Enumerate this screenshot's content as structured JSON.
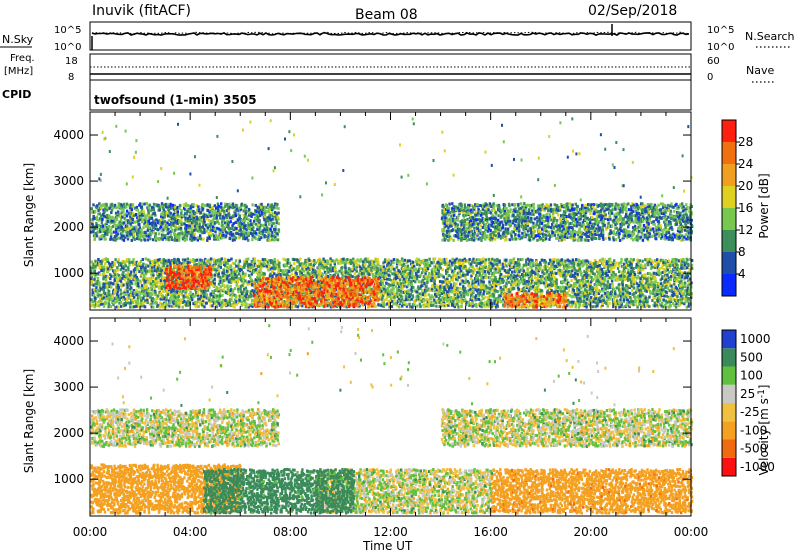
{
  "header": {
    "station": "Inuvik (fitACF)",
    "beam": "Beam 08",
    "date": "02/Sep/2018"
  },
  "noise_panel": {
    "left_label": "N.Sky",
    "left_ticks": [
      "10^5",
      "10^0"
    ],
    "right_ticks": [
      "10^5",
      "10^0"
    ],
    "right_label": "N.Search"
  },
  "freq_panel": {
    "left_label_1": "Freq.",
    "left_label_2": "[MHz]",
    "left_ticks": [
      "18",
      "8"
    ],
    "right_ticks": [
      "60",
      "0"
    ],
    "right_label": "Nave"
  },
  "cpid": {
    "label": "CPID",
    "program": "twofsound (1-min) 3505"
  },
  "colors": {
    "power": [
      "#0a2bff",
      "#1f4fa8",
      "#3c8f5a",
      "#78c850",
      "#e0d020",
      "#f0a020",
      "#f07010",
      "#ff2010"
    ],
    "velocity": [
      "#ff1010",
      "#f06a10",
      "#f4a020",
      "#f0c040",
      "#c8c8c4",
      "#60c040",
      "#3a8a5a",
      "#2040d0"
    ],
    "background": "#ffffff",
    "axes": "#000000"
  },
  "chart_data": [
    {
      "type": "heatmap",
      "title": "",
      "xlabel": "",
      "ylabel": "Slant Range [km]",
      "xlim": [
        "00:00",
        "00:00"
      ],
      "ylim": [
        200,
        4500
      ],
      "x_ticks": [
        "00:00",
        "04:00",
        "08:00",
        "12:00",
        "16:00",
        "20:00",
        "00:00"
      ],
      "y_ticks": [
        1000,
        2000,
        3000,
        4000
      ],
      "colorbar": {
        "label": "Power [dB]",
        "levels": [
          4,
          8,
          12,
          16,
          20,
          24,
          28
        ],
        "range": [
          0,
          32
        ]
      },
      "regions": [
        {
          "name": "lower band",
          "t_start": 0.0,
          "t_end": 24.0,
          "range_km": [
            250,
            1300
          ],
          "power_dB": 12
        },
        {
          "name": "upper band morning",
          "t_start": 0.0,
          "t_end": 7.5,
          "range_km": [
            1700,
            2500
          ],
          "power_dB": 10
        },
        {
          "name": "upper band evening",
          "t_start": 14.0,
          "t_end": 24.0,
          "range_km": [
            1700,
            2500
          ],
          "power_dB": 10
        },
        {
          "name": "strong echo",
          "t_start": 3.0,
          "t_end": 4.8,
          "range_km": [
            650,
            1150
          ],
          "power_dB": 28
        },
        {
          "name": "strong echo",
          "t_start": 6.5,
          "t_end": 11.5,
          "range_km": [
            250,
            900
          ],
          "power_dB": 26
        },
        {
          "name": "strong echo",
          "t_start": 16.5,
          "t_end": 19.0,
          "range_km": [
            250,
            550
          ],
          "power_dB": 24
        }
      ]
    },
    {
      "type": "heatmap",
      "title": "",
      "xlabel": "Time UT",
      "ylabel": "Slant Range [km]",
      "xlim": [
        "00:00",
        "00:00"
      ],
      "ylim": [
        200,
        4500
      ],
      "x_ticks": [
        "00:00",
        "04:00",
        "08:00",
        "12:00",
        "16:00",
        "20:00",
        "00:00"
      ],
      "y_ticks": [
        1000,
        2000,
        3000,
        4000
      ],
      "colorbar": {
        "label": "Velocity [m s^-1]",
        "levels": [
          -1000,
          -500,
          -100,
          -25,
          25,
          100,
          500,
          1000
        ],
        "range": [
          -1200,
          1200
        ]
      },
      "regions": [
        {
          "name": "ground scatter",
          "t_start": 0.0,
          "t_end": 7.5,
          "range_km": [
            1700,
            2500
          ],
          "velocity": 0
        },
        {
          "name": "ground scatter",
          "t_start": 14.0,
          "t_end": 24.0,
          "range_km": [
            1700,
            2500
          ],
          "velocity": 0
        },
        {
          "name": "ground scatter",
          "t_start": 9.0,
          "t_end": 16.0,
          "range_km": [
            250,
            1200
          ],
          "velocity": 0
        },
        {
          "name": "negative flow",
          "t_start": 0.0,
          "t_end": 6.0,
          "range_km": [
            250,
            1300
          ],
          "velocity": -300
        },
        {
          "name": "positive flow",
          "t_start": 4.5,
          "t_end": 10.5,
          "range_km": [
            250,
            1200
          ],
          "velocity": 200
        },
        {
          "name": "negative flow",
          "t_start": 16.0,
          "t_end": 24.0,
          "range_km": [
            250,
            1200
          ],
          "velocity": -400
        }
      ]
    }
  ]
}
